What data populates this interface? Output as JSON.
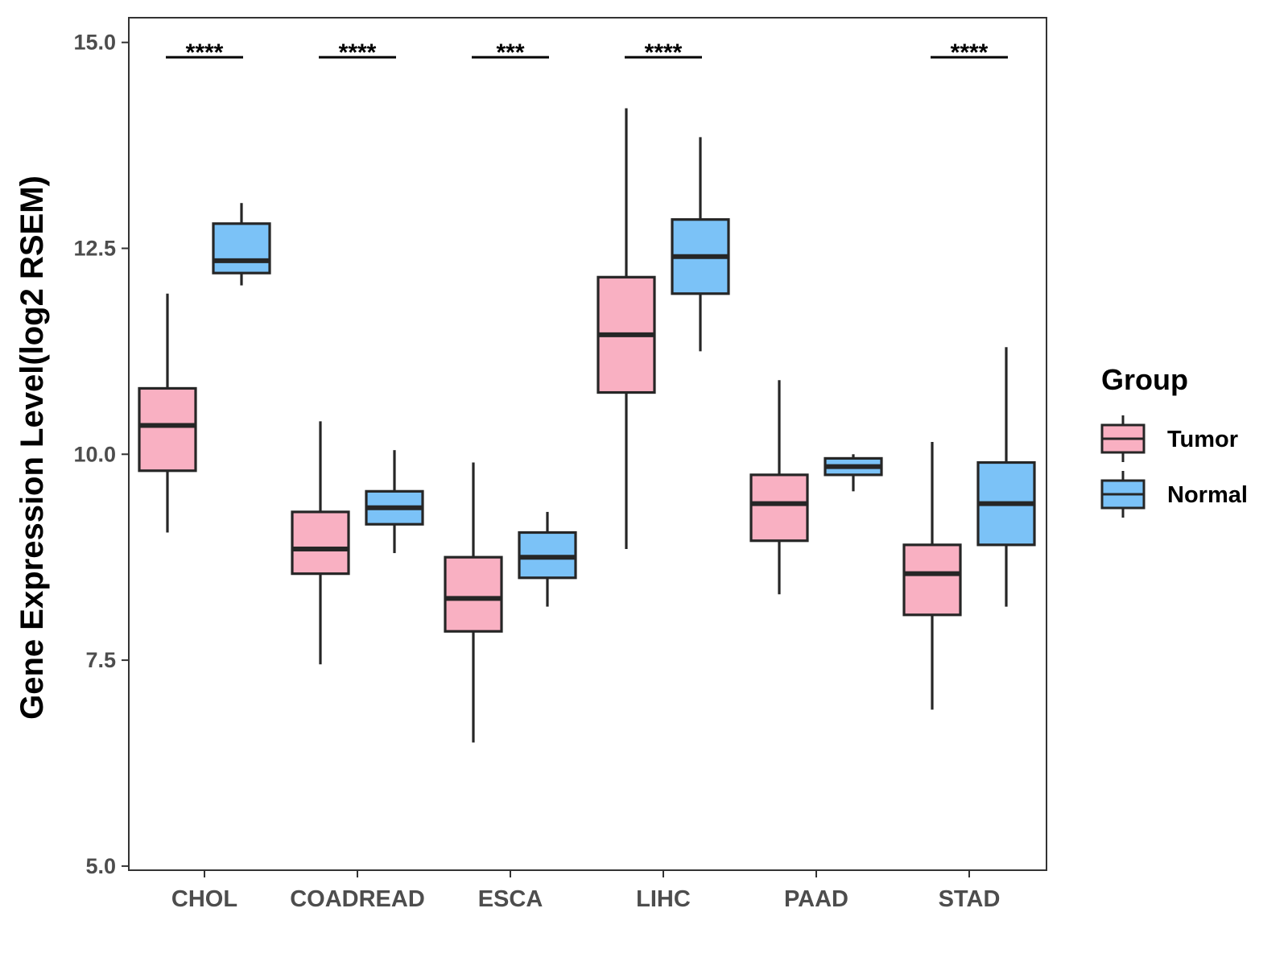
{
  "chart_data": {
    "type": "boxplot",
    "ylabel": "Gene Expression Level(log2 RSEM)",
    "xlabel": "",
    "ylim": [
      4.95,
      15.3
    ],
    "yticks": [
      5.0,
      7.5,
      10.0,
      12.5,
      15.0
    ],
    "ytick_labels": [
      "5.0",
      "7.5",
      "10.0",
      "12.5",
      "15.0"
    ],
    "categories": [
      "CHOL",
      "COADREAD",
      "ESCA",
      "LIHC",
      "PAAD",
      "STAD"
    ],
    "legend": {
      "title": "Group",
      "position": "right"
    },
    "series": [
      {
        "name": "Tumor",
        "color": "#f9b0c2",
        "boxes": [
          {
            "whisker_low": 9.05,
            "q1": 9.8,
            "median": 10.35,
            "q3": 10.8,
            "whisker_high": 11.95
          },
          {
            "whisker_low": 7.45,
            "q1": 8.55,
            "median": 8.85,
            "q3": 9.3,
            "whisker_high": 10.4
          },
          {
            "whisker_low": 6.5,
            "q1": 7.85,
            "median": 8.25,
            "q3": 8.75,
            "whisker_high": 9.9
          },
          {
            "whisker_low": 8.85,
            "q1": 10.75,
            "median": 11.45,
            "q3": 12.15,
            "whisker_high": 14.2
          },
          {
            "whisker_low": 8.3,
            "q1": 8.95,
            "median": 9.4,
            "q3": 9.75,
            "whisker_high": 10.9
          },
          {
            "whisker_low": 6.9,
            "q1": 8.05,
            "median": 8.55,
            "q3": 8.9,
            "whisker_high": 10.15
          }
        ]
      },
      {
        "name": "Normal",
        "color": "#7bc2f7",
        "boxes": [
          {
            "whisker_low": 12.05,
            "q1": 12.2,
            "median": 12.35,
            "q3": 12.8,
            "whisker_high": 13.05
          },
          {
            "whisker_low": 8.8,
            "q1": 9.15,
            "median": 9.35,
            "q3": 9.55,
            "whisker_high": 10.05
          },
          {
            "whisker_low": 8.15,
            "q1": 8.5,
            "median": 8.75,
            "q3": 9.05,
            "whisker_high": 9.3
          },
          {
            "whisker_low": 11.25,
            "q1": 11.95,
            "median": 12.4,
            "q3": 12.85,
            "whisker_high": 13.85
          },
          {
            "whisker_low": 9.55,
            "q1": 9.75,
            "median": 9.85,
            "q3": 9.95,
            "whisker_high": 10.0
          },
          {
            "whisker_low": 8.15,
            "q1": 8.9,
            "median": 9.4,
            "q3": 9.9,
            "whisker_high": 11.3
          }
        ]
      }
    ],
    "significance": [
      "****",
      "****",
      "***",
      "****",
      "",
      "****"
    ],
    "significance_level": 14.8
  }
}
